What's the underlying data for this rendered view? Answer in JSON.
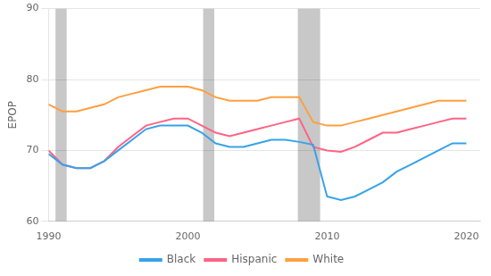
{
  "chart_data": {
    "type": "line",
    "ylabel": "EPOP",
    "x": [
      1990,
      1991,
      1992,
      1993,
      1994,
      1995,
      1996,
      1997,
      1998,
      1999,
      2000,
      2001,
      2002,
      2003,
      2004,
      2005,
      2006,
      2007,
      2008,
      2009,
      2010,
      2011,
      2012,
      2013,
      2014,
      2015,
      2016,
      2017,
      2018,
      2019,
      2020
    ],
    "series": [
      {
        "name": "Black",
        "values": [
          69.5,
          68.0,
          67.5,
          67.5,
          68.5,
          70.0,
          71.5,
          73.0,
          73.5,
          73.5,
          73.5,
          72.5,
          71.0,
          70.5,
          70.5,
          71.0,
          71.5,
          71.5,
          71.2,
          70.8,
          63.5,
          63.0,
          63.5,
          64.5,
          65.5,
          67.0,
          68.0,
          69.0,
          70.0,
          71.0,
          71.0
        ]
      },
      {
        "name": "Hispanic",
        "values": [
          70.0,
          68.0,
          67.5,
          67.5,
          68.5,
          70.5,
          72.0,
          73.5,
          74.0,
          74.5,
          74.5,
          73.5,
          72.5,
          72.0,
          72.5,
          73.0,
          73.5,
          74.0,
          74.5,
          70.5,
          70.0,
          69.8,
          70.5,
          71.5,
          72.5,
          72.5,
          73.0,
          73.5,
          74.0,
          74.5,
          74.5
        ]
      },
      {
        "name": "White",
        "values": [
          76.5,
          75.5,
          75.5,
          76.0,
          76.5,
          77.5,
          78.0,
          78.5,
          79.0,
          79.0,
          79.0,
          78.5,
          77.5,
          77.0,
          77.0,
          77.0,
          77.5,
          77.5,
          77.5,
          74.0,
          73.5,
          73.5,
          74.0,
          74.5,
          75.0,
          75.5,
          76.0,
          76.5,
          77.0,
          77.0,
          77.0
        ]
      }
    ],
    "xlim": [
      1990,
      2021
    ],
    "xticks": [
      1990,
      2000,
      2010,
      2020
    ],
    "ylim": [
      60,
      90
    ],
    "yticks": [
      60,
      70,
      80,
      90
    ],
    "bands": [
      {
        "from": 1990.5,
        "to": 1991.3,
        "color": "#c8c8c8"
      },
      {
        "from": 2001.1,
        "to": 2001.9,
        "color": "#c8c8c8"
      },
      {
        "from": 2007.9,
        "to": 2009.5,
        "color": "#c8c8c8"
      }
    ],
    "grid": "y",
    "legend": "bottom"
  }
}
